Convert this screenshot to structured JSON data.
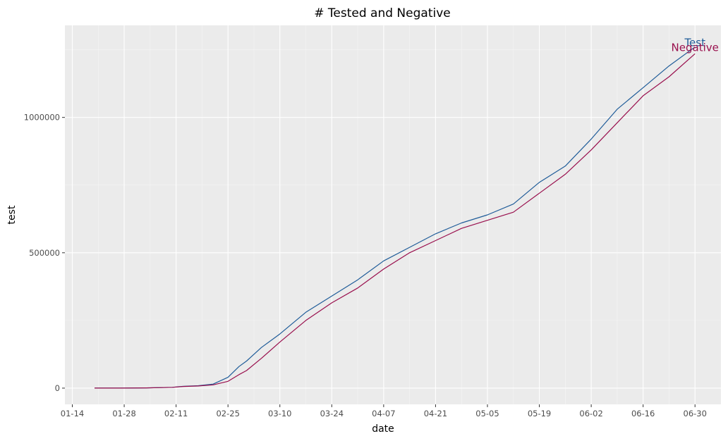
{
  "chart_data": {
    "type": "line",
    "title": "# Tested and Negative",
    "xlabel": "date",
    "ylabel": "test",
    "x_tick_labels": [
      "01-14",
      "01-28",
      "02-11",
      "02-25",
      "03-10",
      "03-24",
      "04-07",
      "04-21",
      "05-05",
      "05-19",
      "06-02",
      "06-16",
      "06-30"
    ],
    "y_ticks": [
      0,
      500000,
      1000000
    ],
    "y_tick_labels": [
      "0",
      "500000",
      "1000000"
    ],
    "xlim": [
      "2020-01-12",
      "2020-07-07"
    ],
    "ylim": [
      -60000,
      1340000
    ],
    "grid": true,
    "legend": "inline labels at line ends",
    "x": [
      "2020-01-20",
      "2020-01-27",
      "2020-02-03",
      "2020-02-10",
      "2020-02-13",
      "2020-02-17",
      "2020-02-21",
      "2020-02-25",
      "2020-02-28",
      "2020-03-01",
      "2020-03-05",
      "2020-03-10",
      "2020-03-17",
      "2020-03-24",
      "2020-03-31",
      "2020-04-07",
      "2020-04-14",
      "2020-04-21",
      "2020-04-28",
      "2020-05-05",
      "2020-05-12",
      "2020-05-19",
      "2020-05-26",
      "2020-06-02",
      "2020-06-09",
      "2020-06-16",
      "2020-06-23",
      "2020-06-30"
    ],
    "series": [
      {
        "name": "Test",
        "color": "#1f5c99",
        "values": [
          0,
          0,
          1000,
          3000,
          7000,
          9000,
          15000,
          40000,
          80000,
          100000,
          150000,
          200000,
          280000,
          340000,
          400000,
          470000,
          520000,
          570000,
          610000,
          640000,
          680000,
          760000,
          820000,
          920000,
          1030000,
          1110000,
          1190000,
          1260000
        ]
      },
      {
        "name": "Negative",
        "color": "#990f4d",
        "values": [
          0,
          0,
          1000,
          3000,
          6000,
          8000,
          12000,
          25000,
          50000,
          65000,
          110000,
          170000,
          250000,
          315000,
          370000,
          440000,
          500000,
          545000,
          590000,
          620000,
          650000,
          720000,
          790000,
          880000,
          980000,
          1080000,
          1150000,
          1235000
        ]
      }
    ]
  }
}
